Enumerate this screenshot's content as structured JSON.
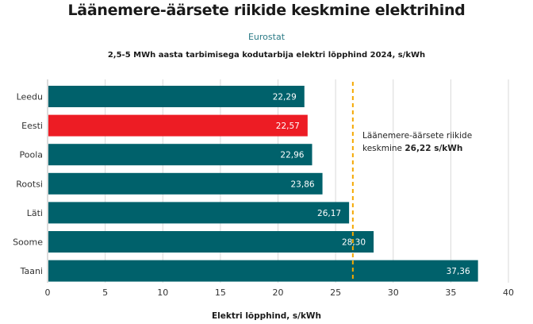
{
  "chart_data": {
    "type": "bar",
    "orientation": "horizontal",
    "title": "Läänemere-äärsete riikide keskmine elektrihind",
    "source": "Eurostat",
    "subtitle": "2,5-5 MWh aasta tarbimisega kodutarbija elektri lõpphind 2024, s/kWh",
    "xlabel": "Elektri lõpphind, s/kWh",
    "ylabel": "",
    "categories": [
      "Leedu",
      "Eesti",
      "Poola",
      "Rootsi",
      "Läti",
      "Soome",
      "Taani"
    ],
    "values": [
      22.29,
      22.57,
      22.96,
      23.86,
      26.17,
      28.3,
      37.36
    ],
    "value_labels": [
      "22,29",
      "22,57",
      "22,96",
      "23,86",
      "26,17",
      "28,30",
      "37,36"
    ],
    "highlight": "Eesti",
    "xlim": [
      0,
      40
    ],
    "xticks": [
      0,
      5,
      10,
      15,
      20,
      25,
      30,
      35,
      40
    ],
    "grid": true,
    "reference_line": {
      "value": 26.22,
      "label_prefix": "Läänemere-äärsete riikide",
      "label_mid": "keskmine ",
      "label_bold": "26,22 s/kWh"
    },
    "colors": {
      "bar": "#00616b",
      "highlight": "#ed1c24",
      "reference_line": "#f5a800",
      "grid": "#d9d9d9"
    }
  }
}
